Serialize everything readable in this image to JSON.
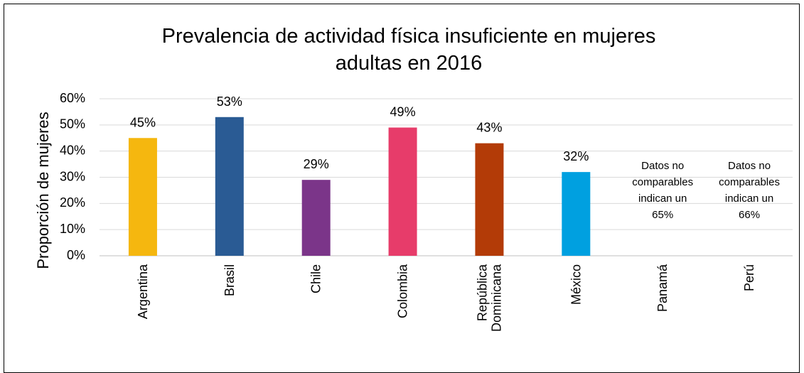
{
  "chart_data": {
    "type": "bar",
    "title": "Prevalencia de actividad física insuficiente en mujeres adultas en 2016",
    "ylabel": "Proporción de mujeres",
    "categories": [
      "Argentina",
      "Brasil",
      "Chile",
      "Colombia",
      "República Dominicana",
      "México",
      "Panamá",
      "Perú"
    ],
    "values": [
      45,
      53,
      29,
      49,
      43,
      32,
      null,
      null
    ],
    "value_labels": [
      "45%",
      "53%",
      "29%",
      "49%",
      "43%",
      "32%",
      null,
      null
    ],
    "value_notes": [
      null,
      null,
      null,
      null,
      null,
      null,
      [
        "Datos no",
        "comparables",
        "indican un",
        "65%"
      ],
      [
        "Datos no",
        "comparables",
        "indican un",
        "66%"
      ]
    ],
    "colors": [
      "#f5b70f",
      "#2a5b94",
      "#7b3589",
      "#e73c6a",
      "#b33b07",
      "#00a0e0",
      null,
      null
    ],
    "ylim": [
      0,
      60
    ],
    "yticks": [
      {
        "value": 0,
        "label": "0%"
      },
      {
        "value": 10,
        "label": "10%"
      },
      {
        "value": 20,
        "label": "20%"
      },
      {
        "value": 30,
        "label": "30%"
      },
      {
        "value": 40,
        "label": "40%"
      },
      {
        "value": 50,
        "label": "50%"
      },
      {
        "value": 60,
        "label": "60%"
      }
    ],
    "grid": true
  }
}
